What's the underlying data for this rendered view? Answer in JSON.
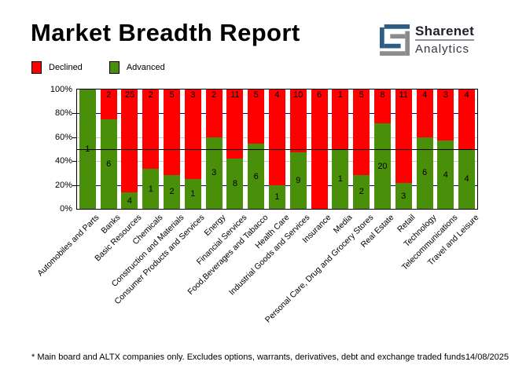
{
  "header": {
    "title": "Market Breadth Report"
  },
  "logo": {
    "name_top": "Sharenet",
    "name_bottom": "Analytics",
    "icon_blue": "#2d5c87",
    "icon_gray": "#8a8c8e"
  },
  "legend": [
    {
      "label": "Declined",
      "color": "#ff0000"
    },
    {
      "label": "Advanced",
      "color": "#4a8f0a"
    }
  ],
  "chart_data": {
    "type": "bar",
    "stacked": "100%",
    "orientation": "vertical",
    "title": "Market Breadth Report",
    "categories": [
      "Automobiles and Parts",
      "Banks",
      "Basic Resources",
      "Chemicals",
      "Construction and Materials",
      "Consumer Products and Services",
      "Energy",
      "Financial Services",
      "Food,Beverages and Tabacco",
      "Health Care",
      "Industrial Goods and Services",
      "Insurance",
      "Media",
      "Personal Care, Drug and Grocery Stores",
      "Real Estate",
      "Retail",
      "Technology",
      "Telecommunications",
      "Travel and Leisure"
    ],
    "series": [
      {
        "name": "Declined",
        "color": "#ff0000",
        "values": [
          0,
          2,
          25,
          2,
          5,
          3,
          2,
          11,
          5,
          4,
          10,
          6,
          1,
          5,
          8,
          11,
          4,
          3,
          4
        ]
      },
      {
        "name": "Advanced",
        "color": "#4a8f0a",
        "values": [
          1,
          6,
          4,
          1,
          2,
          1,
          3,
          8,
          6,
          1,
          9,
          0,
          1,
          2,
          20,
          3,
          6,
          4,
          4
        ]
      }
    ],
    "yticks": [
      "0%",
      "20%",
      "40%",
      "60%",
      "80%",
      "100%"
    ],
    "ylim": [
      0,
      100
    ],
    "value_labels": "segment counts printed on bars",
    "gridlines": {
      "20": "#000080",
      "40": "#c8c8c8",
      "60": "#c8c8c8",
      "80": "#000080"
    },
    "midline": {
      "value": 50,
      "color": "#000000"
    },
    "legend_position": "top-left"
  },
  "footer": {
    "note": "* Main board and ALTX companies only. Excludes options, warrants, derivatives, debt and exchange traded funds",
    "date": "14/08/2025"
  }
}
